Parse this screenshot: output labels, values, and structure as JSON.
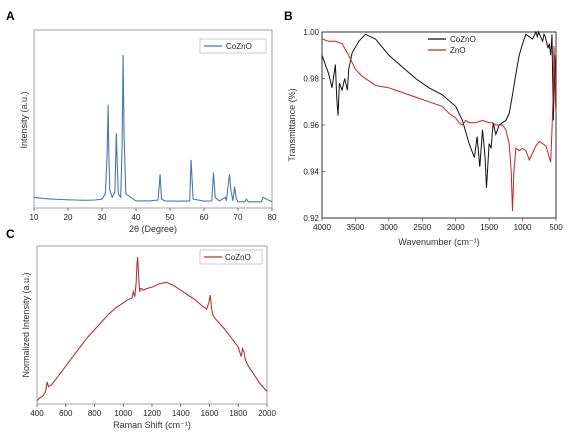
{
  "panels": [
    {
      "letter": "A"
    },
    {
      "letter": "B"
    },
    {
      "letter": "C"
    }
  ],
  "chart_data": [
    {
      "id": "A",
      "type": "line",
      "xlabel": "2θ (Degree)",
      "ylabel": "Intensity (a.u.)",
      "xlim": [
        10,
        80
      ],
      "ylim": [
        0,
        100
      ],
      "xticks": [
        "10",
        "20",
        "30",
        "40",
        "50",
        "60",
        "70",
        "80"
      ],
      "legend": {
        "position": "top-right"
      },
      "grid": false,
      "colors": {
        "series": "#4a78b0"
      },
      "series": [
        {
          "name": "CoZnO",
          "x": [
            10,
            12,
            15,
            18,
            20,
            22,
            25,
            28,
            30,
            31,
            31.5,
            31.8,
            32,
            32.3,
            33,
            33.8,
            34.2,
            34.5,
            34.8,
            35.5,
            35.9,
            36.2,
            36.5,
            37,
            40,
            44,
            46.5,
            47.1,
            47.5,
            48.5,
            52,
            55.8,
            56.2,
            56.8,
            60,
            62.3,
            62.8,
            63.3,
            64.5,
            66.3,
            66.6,
            67,
            67.5,
            67.9,
            68.5,
            69,
            69.5,
            70,
            72,
            72.5,
            73,
            75,
            76.9,
            77.3,
            80
          ],
          "y": [
            6,
            5.5,
            5,
            4.8,
            4.6,
            4.5,
            4.3,
            4.5,
            5,
            8,
            30,
            58,
            32,
            10,
            6,
            9,
            42,
            24,
            8,
            6,
            35,
            86,
            40,
            8,
            4,
            4,
            4.5,
            19,
            5,
            4,
            3.8,
            4,
            27,
            5,
            3.8,
            4,
            20,
            6,
            4,
            6,
            4,
            11,
            19,
            10,
            4,
            12,
            5,
            3.5,
            3.5,
            5,
            3.5,
            3.5,
            3.5,
            6,
            3.5
          ]
        }
      ]
    },
    {
      "id": "B",
      "type": "line",
      "xlabel": "Wavenumber (cm⁻¹)",
      "ylabel": "Transmittance (%)",
      "xlim": [
        4000,
        500
      ],
      "ylim": [
        0.92,
        1.0
      ],
      "xticks": [
        "4000",
        "3500",
        "3000",
        "2500",
        "2000",
        "1500",
        "1000",
        "500"
      ],
      "yticks": [
        "0.92",
        "0.94",
        "0.96",
        "0.98",
        "1.00"
      ],
      "legend": {
        "position": "top-center"
      },
      "grid": false,
      "colors": {
        "CoZnO": "#111111",
        "ZnO": "#cc2222"
      },
      "series": [
        {
          "name": "CoZnO",
          "x": [
            4000,
            3900,
            3850,
            3800,
            3780,
            3760,
            3740,
            3700,
            3660,
            3620,
            3600,
            3550,
            3450,
            3350,
            3200,
            3000,
            2800,
            2600,
            2400,
            2200,
            2000,
            1900,
            1800,
            1720,
            1680,
            1640,
            1600,
            1560,
            1540,
            1500,
            1470,
            1440,
            1400,
            1350,
            1300,
            1250,
            1200,
            1150,
            1100,
            1050,
            1000,
            950,
            900,
            850,
            800,
            780,
            760,
            700,
            680,
            660,
            620,
            600,
            580,
            560,
            540,
            520,
            500
          ],
          "y": [
            0.99,
            0.982,
            0.976,
            0.986,
            0.972,
            0.964,
            0.978,
            0.975,
            0.98,
            0.975,
            0.984,
            0.991,
            0.996,
            0.999,
            0.997,
            0.99,
            0.985,
            0.98,
            0.976,
            0.973,
            0.968,
            0.962,
            0.952,
            0.946,
            0.955,
            0.942,
            0.958,
            0.946,
            0.933,
            0.952,
            0.95,
            0.961,
            0.956,
            0.96,
            0.961,
            0.962,
            0.965,
            0.973,
            0.982,
            0.99,
            0.995,
            0.999,
            0.998,
            0.997,
            1.0,
            0.998,
            1.0,
            0.996,
            0.999,
            0.998,
            0.993,
            0.995,
            0.99,
            0.999,
            0.962,
            0.99,
            0.98
          ]
        },
        {
          "name": "ZnO",
          "x": [
            4000,
            3900,
            3800,
            3700,
            3600,
            3500,
            3400,
            3300,
            3200,
            3000,
            2800,
            2600,
            2400,
            2200,
            2100,
            2000,
            1950,
            1900,
            1850,
            1800,
            1700,
            1600,
            1500,
            1450,
            1400,
            1350,
            1300,
            1250,
            1200,
            1170,
            1150,
            1130,
            1100,
            1050,
            1000,
            950,
            900,
            850,
            800,
            750,
            700,
            650,
            600,
            580,
            560,
            540,
            530,
            520,
            510,
            500
          ],
          "y": [
            0.997,
            0.996,
            0.996,
            0.995,
            0.99,
            0.984,
            0.981,
            0.979,
            0.977,
            0.976,
            0.974,
            0.972,
            0.97,
            0.968,
            0.965,
            0.963,
            0.961,
            0.96,
            0.962,
            0.961,
            0.961,
            0.962,
            0.961,
            0.961,
            0.96,
            0.96,
            0.96,
            0.958,
            0.952,
            0.94,
            0.923,
            0.94,
            0.95,
            0.949,
            0.95,
            0.949,
            0.945,
            0.948,
            0.951,
            0.953,
            0.952,
            0.951,
            0.946,
            0.944,
            0.958,
            0.975,
            0.994,
            0.985,
            0.97,
            0.965
          ]
        }
      ]
    },
    {
      "id": "C",
      "type": "line",
      "xlabel": "Raman Shift (cm⁻¹)",
      "ylabel": "Normalized Intensity (a.u.)",
      "xlim": [
        400,
        2000
      ],
      "ylim": [
        0,
        100
      ],
      "xticks": [
        "400",
        "600",
        "800",
        "1000",
        "1200",
        "1400",
        "1600",
        "1800",
        "2000"
      ],
      "legend": {
        "position": "top-right"
      },
      "grid": false,
      "colors": {
        "series": "#b83232"
      },
      "series": [
        {
          "name": "CoZnO",
          "x": [
            400,
            420,
            440,
            460,
            470,
            480,
            500,
            550,
            600,
            650,
            700,
            750,
            800,
            850,
            900,
            950,
            1000,
            1030,
            1060,
            1070,
            1080,
            1090,
            1095,
            1100,
            1105,
            1110,
            1115,
            1120,
            1130,
            1140,
            1160,
            1200,
            1250,
            1300,
            1350,
            1400,
            1450,
            1500,
            1550,
            1580,
            1595,
            1605,
            1615,
            1625,
            1640,
            1660,
            1700,
            1750,
            1800,
            1820,
            1830,
            1840,
            1850,
            1870,
            1900,
            1950,
            2000
          ],
          "y": [
            2,
            4,
            5,
            8,
            14,
            11,
            12,
            18,
            24,
            30,
            36,
            42,
            47,
            52,
            57,
            61,
            64,
            66,
            67,
            71,
            68,
            77,
            88,
            93,
            86,
            75,
            71,
            73,
            73,
            72,
            73,
            74,
            76,
            77,
            75,
            72,
            69,
            66,
            62,
            60,
            64,
            69,
            60,
            56,
            54,
            52,
            48,
            42,
            36,
            30,
            35,
            33,
            28,
            24,
            20,
            13,
            8
          ]
        }
      ]
    }
  ]
}
